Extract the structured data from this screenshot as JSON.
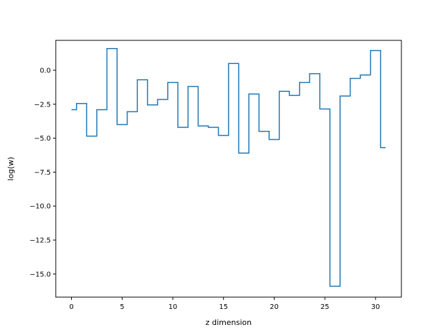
{
  "chart_data": {
    "type": "line",
    "drawstyle": "steps-mid",
    "title": "",
    "xlabel": "z dimension",
    "ylabel": "log(w)",
    "xlim": [
      -1.55,
      32.55
    ],
    "ylim": [
      -16.7,
      2.2
    ],
    "xticks": [
      0,
      5,
      10,
      15,
      20,
      25,
      30
    ],
    "xtick_labels": [
      "0",
      "5",
      "10",
      "15",
      "20",
      "25",
      "30"
    ],
    "yticks": [
      0,
      -2.5,
      -5,
      -7.5,
      -10,
      -12.5,
      -15
    ],
    "ytick_labels": [
      "0.0",
      "−2.5",
      "−5.0",
      "−7.5",
      "−10.0",
      "−12.5",
      "−15.0"
    ],
    "grid": false,
    "line_color": "#1f77b4",
    "x": [
      0,
      1,
      2,
      3,
      4,
      5,
      6,
      7,
      8,
      9,
      10,
      11,
      12,
      13,
      14,
      15,
      16,
      17,
      18,
      19,
      20,
      21,
      22,
      23,
      24,
      25,
      26,
      27,
      28,
      29,
      30,
      31
    ],
    "y": [
      -2.9,
      -2.45,
      -4.85,
      -2.9,
      1.6,
      -4.0,
      -3.05,
      -0.7,
      -2.55,
      -2.15,
      -0.9,
      -4.2,
      -1.2,
      -4.1,
      -4.2,
      -4.8,
      0.5,
      -6.1,
      -1.75,
      -4.5,
      -5.1,
      -1.55,
      -1.85,
      -0.9,
      -0.25,
      -2.85,
      -15.9,
      -1.9,
      -0.6,
      -0.35,
      1.45,
      -5.7
    ]
  }
}
